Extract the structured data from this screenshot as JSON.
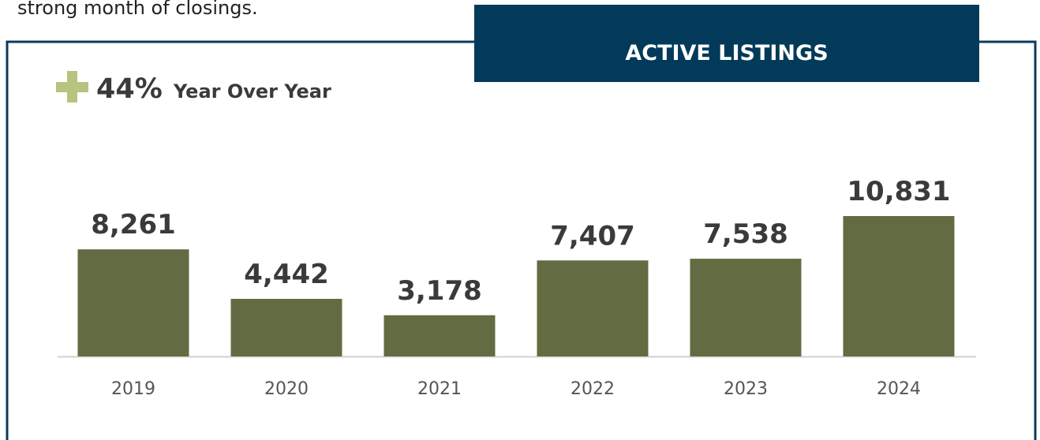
{
  "intro_text": "strong month of closings.",
  "chart_data": {
    "type": "bar",
    "title": "ACTIVE LISTINGS",
    "yoy_change": "44%",
    "yoy_label": "Year Over Year",
    "categories": [
      "2019",
      "2020",
      "2021",
      "2022",
      "2023",
      "2024"
    ],
    "values": [
      8261,
      4442,
      3178,
      7407,
      7538,
      10831
    ],
    "value_labels": [
      "8,261",
      "4,442",
      "3,178",
      "7,407",
      "7,538",
      "10,831"
    ],
    "color": "#626b42"
  }
}
